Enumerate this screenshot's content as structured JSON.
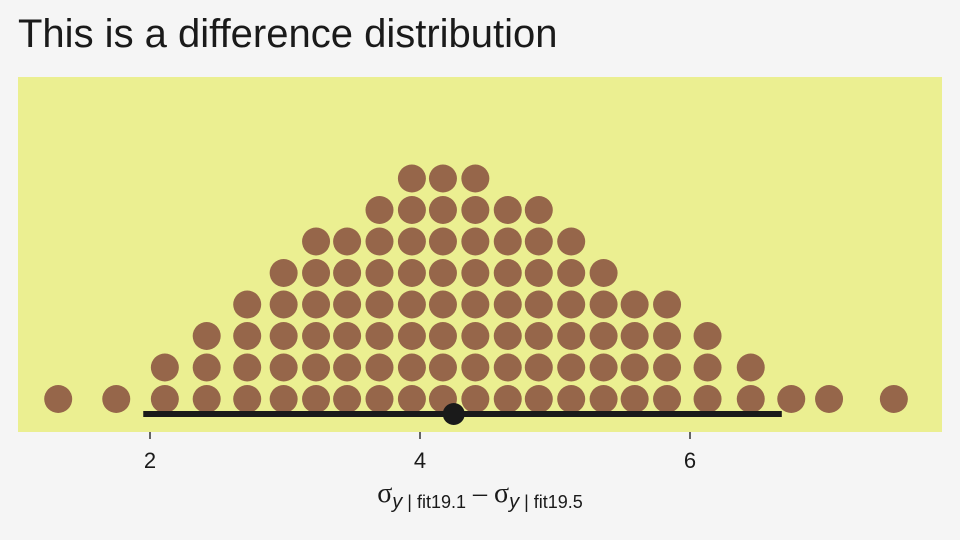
{
  "chart_data": {
    "type": "dotplot",
    "title": "This is a difference distribution",
    "xlabel": {
      "sym1": "σ",
      "sub1": "y",
      "group1": " | fit19.1",
      "minus": " – ",
      "sym2": "σ",
      "sub2": "y",
      "group2": " | fit19.5"
    },
    "x_ticks": [
      2,
      4,
      6
    ],
    "xlim": [
      1.0,
      7.8
    ],
    "dot_color": "#96664a",
    "panel_color": "#ebef91",
    "bins": [
      {
        "x": 1.32,
        "count": 1
      },
      {
        "x": 1.75,
        "count": 1
      },
      {
        "x": 2.11,
        "count": 2
      },
      {
        "x": 2.42,
        "count": 3
      },
      {
        "x": 2.72,
        "count": 4
      },
      {
        "x": 2.99,
        "count": 5
      },
      {
        "x": 3.23,
        "count": 6
      },
      {
        "x": 3.46,
        "count": 6
      },
      {
        "x": 3.7,
        "count": 7
      },
      {
        "x": 3.94,
        "count": 8
      },
      {
        "x": 4.17,
        "count": 8
      },
      {
        "x": 4.41,
        "count": 8
      },
      {
        "x": 4.65,
        "count": 7
      },
      {
        "x": 4.88,
        "count": 7
      },
      {
        "x": 5.12,
        "count": 6
      },
      {
        "x": 5.36,
        "count": 5
      },
      {
        "x": 5.59,
        "count": 4
      },
      {
        "x": 5.83,
        "count": 4
      },
      {
        "x": 6.13,
        "count": 3
      },
      {
        "x": 6.45,
        "count": 2
      },
      {
        "x": 6.75,
        "count": 1
      },
      {
        "x": 7.03,
        "count": 1
      },
      {
        "x": 7.51,
        "count": 1
      }
    ],
    "interval": {
      "low": 1.95,
      "high": 6.68,
      "point": 4.25
    }
  }
}
